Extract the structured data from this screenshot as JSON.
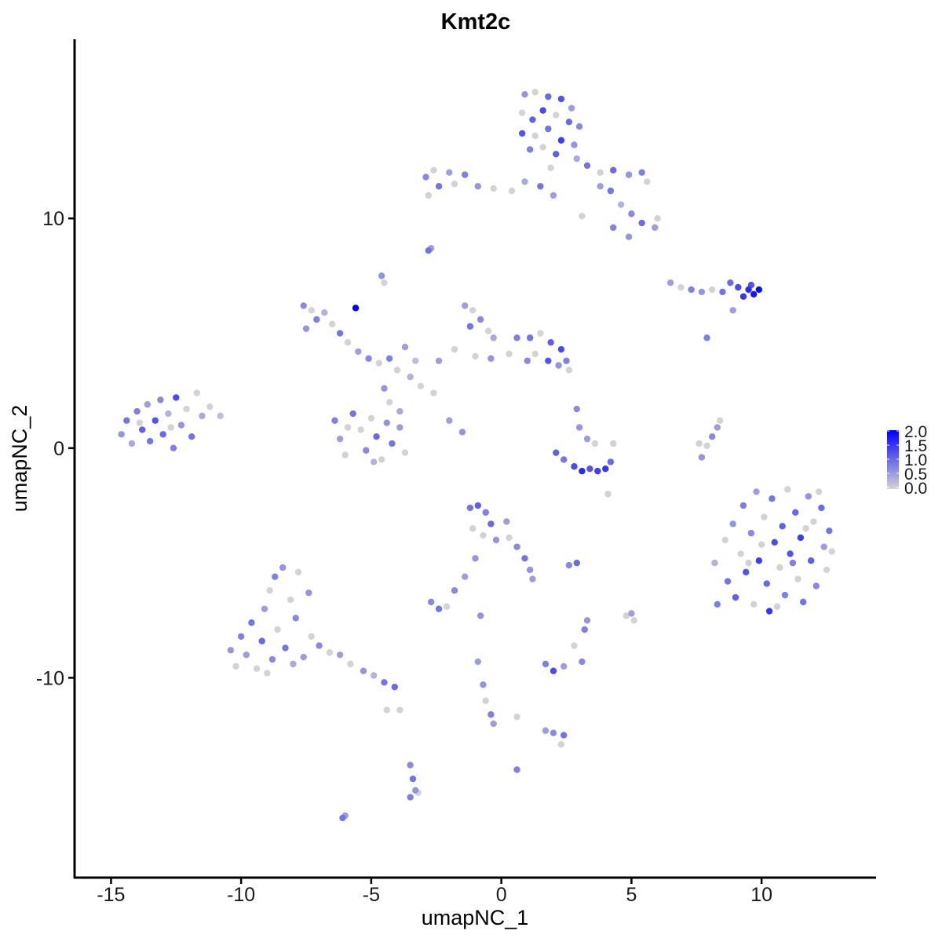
{
  "chart_data": {
    "type": "scatter",
    "title": "Kmt2c",
    "xlabel": "umapNC_1",
    "ylabel": "umapNC_2",
    "xlim": [
      -16.4,
      14.4
    ],
    "ylim": [
      -18.7,
      17.8
    ],
    "xticks": [
      -15,
      -10,
      -5,
      0,
      5,
      10
    ],
    "yticks": [
      -10,
      0,
      10
    ],
    "grid": false,
    "color_scale": {
      "low": "#d3d3d3",
      "high": "#0000ff",
      "min": 0,
      "max": 2.0,
      "ticks": [
        "0.0",
        "0.5",
        "1.0",
        "1.5",
        "2.0"
      ]
    },
    "legend_position": "right",
    "points": [
      [
        -14.6,
        0.6,
        0.6
      ],
      [
        -14.4,
        1.2,
        0.9
      ],
      [
        -14.2,
        0.2,
        0.4
      ],
      [
        -14.0,
        1.6,
        0.8
      ],
      [
        -13.8,
        0.8,
        1.1
      ],
      [
        -13.6,
        1.9,
        0.5
      ],
      [
        -13.5,
        0.3,
        0.9
      ],
      [
        -13.3,
        1.2,
        1.2
      ],
      [
        -13.1,
        2.1,
        0.7
      ],
      [
        -13.0,
        0.6,
        1.0
      ],
      [
        -12.8,
        1.5,
        0.3
      ],
      [
        -12.6,
        0.0,
        0.8
      ],
      [
        -12.5,
        2.2,
        1.3
      ],
      [
        -12.3,
        1.0,
        0.6
      ],
      [
        -12.1,
        1.7,
        0
      ],
      [
        -11.9,
        0.5,
        0.9
      ],
      [
        -11.7,
        2.4,
        0
      ],
      [
        -11.5,
        1.4,
        0.4
      ],
      [
        -11.2,
        1.8,
        0
      ],
      [
        -10.8,
        1.4,
        0.2
      ],
      [
        -13.9,
        1.1,
        0
      ],
      [
        -12.7,
        0.9,
        0
      ],
      [
        0.9,
        15.4,
        0.6
      ],
      [
        1.3,
        15.5,
        0
      ],
      [
        1.8,
        15.3,
        1.0
      ],
      [
        2.3,
        15.2,
        1.2
      ],
      [
        2.7,
        14.8,
        0.5
      ],
      [
        0.8,
        14.6,
        0
      ],
      [
        1.2,
        14.3,
        1.1
      ],
      [
        1.6,
        14.7,
        1.3
      ],
      [
        2.1,
        14.5,
        0
      ],
      [
        2.6,
        14.2,
        1.0
      ],
      [
        3.0,
        14.0,
        0.7
      ],
      [
        0.8,
        13.7,
        1.2
      ],
      [
        1.3,
        13.6,
        0
      ],
      [
        1.8,
        13.9,
        0.9
      ],
      [
        2.3,
        13.4,
        1.4
      ],
      [
        2.8,
        13.2,
        0.6
      ],
      [
        1.1,
        13.0,
        0.8
      ],
      [
        1.6,
        13.1,
        0
      ],
      [
        2.1,
        12.8,
        1.1
      ],
      [
        2.9,
        12.6,
        0.4
      ],
      [
        3.3,
        12.3,
        0.9
      ],
      [
        3.8,
        12.0,
        0
      ],
      [
        4.3,
        12.1,
        1.0
      ],
      [
        4.9,
        11.9,
        0.6
      ],
      [
        5.4,
        12.0,
        0.8
      ],
      [
        5.6,
        11.6,
        0
      ],
      [
        4.2,
        11.2,
        0.9
      ],
      [
        4.6,
        10.6,
        0.3
      ],
      [
        5.0,
        10.2,
        0.7
      ],
      [
        5.4,
        9.8,
        1.0
      ],
      [
        5.9,
        9.6,
        0.5
      ],
      [
        6.0,
        10.0,
        0
      ],
      [
        4.3,
        9.6,
        0.8
      ],
      [
        4.9,
        9.2,
        0.6
      ],
      [
        3.1,
        10.1,
        0
      ],
      [
        3.8,
        11.4,
        0.5
      ],
      [
        1.9,
        12.2,
        0
      ],
      [
        1.5,
        11.4,
        0.9
      ],
      [
        0.9,
        11.6,
        0.4
      ],
      [
        0.4,
        11.2,
        0
      ],
      [
        -0.3,
        11.3,
        0
      ],
      [
        -0.9,
        11.4,
        0.6
      ],
      [
        -1.4,
        11.9,
        0.8
      ],
      [
        -2.0,
        12.0,
        0.5
      ],
      [
        -2.6,
        12.1,
        0
      ],
      [
        -2.9,
        11.8,
        0.7
      ],
      [
        -2.4,
        11.4,
        0.9
      ],
      [
        -2.8,
        11.0,
        0
      ],
      [
        -1.8,
        11.5,
        0
      ],
      [
        2.0,
        11.0,
        0.5
      ],
      [
        -2.8,
        8.6,
        0.9
      ],
      [
        -2.7,
        8.7,
        0.5
      ],
      [
        -4.6,
        7.5,
        0.6
      ],
      [
        -4.5,
        7.2,
        0
      ],
      [
        -7.6,
        6.2,
        0.7
      ],
      [
        -7.3,
        6.0,
        0
      ],
      [
        -7.1,
        5.6,
        0.8
      ],
      [
        -6.8,
        5.9,
        0.3
      ],
      [
        -6.5,
        5.4,
        0
      ],
      [
        -7.5,
        5.2,
        0.6
      ],
      [
        -6.2,
        5.0,
        0.9
      ],
      [
        -5.9,
        4.6,
        0
      ],
      [
        -5.5,
        4.2,
        0.5
      ],
      [
        -5.6,
        6.1,
        2.0
      ],
      [
        -5.1,
        3.9,
        0.7
      ],
      [
        -4.7,
        3.7,
        0
      ],
      [
        -4.3,
        3.9,
        0.8
      ],
      [
        -4.0,
        3.4,
        0
      ],
      [
        -4.5,
        2.6,
        0.6
      ],
      [
        -4.3,
        2.0,
        0
      ],
      [
        -3.9,
        1.6,
        0.4
      ],
      [
        -3.5,
        3.1,
        0.3
      ],
      [
        -3.1,
        2.7,
        0
      ],
      [
        -2.6,
        2.4,
        0
      ],
      [
        -2.0,
        1.2,
        0.5
      ],
      [
        -1.5,
        0.7,
        0.6
      ],
      [
        -3.7,
        4.4,
        0.5
      ],
      [
        -3.3,
        3.8,
        0.2
      ],
      [
        -6.4,
        1.2,
        0.8
      ],
      [
        -6.2,
        0.4,
        0.5
      ],
      [
        -6.0,
        -0.3,
        0
      ],
      [
        -5.7,
        1.5,
        0.9
      ],
      [
        -5.4,
        0.8,
        0
      ],
      [
        -5.2,
        -0.1,
        0.7
      ],
      [
        -5.0,
        1.3,
        0
      ],
      [
        -4.8,
        0.5,
        1.0
      ],
      [
        -4.6,
        -0.5,
        0
      ],
      [
        -4.4,
        1.1,
        0.6
      ],
      [
        -4.2,
        0.2,
        0.9
      ],
      [
        -3.9,
        0.9,
        0.5
      ],
      [
        -3.7,
        -0.2,
        0
      ],
      [
        -4.9,
        -0.6,
        0.3
      ],
      [
        -5.9,
        0.9,
        0
      ],
      [
        -1.4,
        6.2,
        0.5
      ],
      [
        -1.1,
        6.0,
        0
      ],
      [
        -0.8,
        5.6,
        0.7
      ],
      [
        -0.5,
        5.1,
        0
      ],
      [
        -1.2,
        5.3,
        0.9
      ],
      [
        -0.3,
        4.8,
        0.4
      ],
      [
        -1.8,
        4.3,
        0
      ],
      [
        -2.4,
        3.8,
        0.5
      ],
      [
        -1.0,
        4.0,
        0
      ],
      [
        -0.4,
        3.9,
        0.6
      ],
      [
        0.3,
        4.1,
        0
      ],
      [
        0.6,
        4.8,
        0.8
      ],
      [
        1.1,
        4.8,
        0.9
      ],
      [
        1.5,
        5.0,
        0
      ],
      [
        1.9,
        4.6,
        1.1
      ],
      [
        2.3,
        4.3,
        1.3
      ],
      [
        2.5,
        3.8,
        0.8
      ],
      [
        1.3,
        4.1,
        0
      ],
      [
        1.8,
        3.8,
        1.2
      ],
      [
        2.2,
        3.6,
        0.6
      ],
      [
        2.6,
        3.4,
        0
      ],
      [
        1.0,
        3.8,
        0.7
      ],
      [
        6.5,
        7.2,
        0.5
      ],
      [
        6.9,
        7.0,
        0
      ],
      [
        7.3,
        6.9,
        0.8
      ],
      [
        7.7,
        6.8,
        0.6
      ],
      [
        8.1,
        6.9,
        0
      ],
      [
        8.5,
        6.8,
        0.9
      ],
      [
        8.8,
        7.2,
        1.0
      ],
      [
        9.1,
        7.0,
        1.3
      ],
      [
        9.3,
        6.6,
        1.5
      ],
      [
        9.5,
        6.9,
        1.6
      ],
      [
        9.7,
        6.7,
        1.8
      ],
      [
        9.9,
        6.9,
        1.9
      ],
      [
        9.6,
        7.1,
        1.2
      ],
      [
        8.9,
        6.0,
        0.5
      ],
      [
        7.9,
        4.8,
        0.8
      ],
      [
        2.1,
        -0.2,
        1.1
      ],
      [
        2.4,
        -0.5,
        0.9
      ],
      [
        2.8,
        -0.8,
        1.3
      ],
      [
        3.1,
        -1.0,
        1.6
      ],
      [
        3.4,
        -0.9,
        1.2
      ],
      [
        3.7,
        -1.0,
        1.4
      ],
      [
        4.0,
        -0.9,
        1.5
      ],
      [
        4.2,
        -0.6,
        1.0
      ],
      [
        3.0,
        0.9,
        0.6
      ],
      [
        3.3,
        0.4,
        0.5
      ],
      [
        3.6,
        0.2,
        0
      ],
      [
        2.9,
        1.7,
        0.7
      ],
      [
        4.3,
        0.2,
        0
      ],
      [
        4.1,
        -2.0,
        0
      ],
      [
        7.7,
        -0.4,
        0.6
      ],
      [
        7.9,
        0.1,
        0
      ],
      [
        8.1,
        0.5,
        0.7
      ],
      [
        8.3,
        0.9,
        0.5
      ],
      [
        8.4,
        1.2,
        0
      ],
      [
        7.6,
        0.2,
        0
      ],
      [
        8.2,
        -5.0,
        0.3
      ],
      [
        8.3,
        -6.8,
        0.8
      ],
      [
        8.6,
        -4.0,
        0
      ],
      [
        8.7,
        -5.8,
        0.9
      ],
      [
        8.9,
        -3.3,
        0.6
      ],
      [
        9.0,
        -6.5,
        1.1
      ],
      [
        9.2,
        -4.6,
        0
      ],
      [
        9.3,
        -2.5,
        0.8
      ],
      [
        9.4,
        -5.4,
        1.2
      ],
      [
        9.6,
        -3.7,
        0.7
      ],
      [
        9.7,
        -6.8,
        0
      ],
      [
        9.8,
        -1.9,
        0.5
      ],
      [
        9.9,
        -4.9,
        1.4
      ],
      [
        10.1,
        -3.0,
        0
      ],
      [
        10.2,
        -5.9,
        1.0
      ],
      [
        10.3,
        -7.1,
        1.5
      ],
      [
        10.4,
        -2.2,
        0.9
      ],
      [
        10.5,
        -4.1,
        1.3
      ],
      [
        10.7,
        -5.2,
        0
      ],
      [
        10.8,
        -3.4,
        1.1
      ],
      [
        10.9,
        -6.4,
        0.8
      ],
      [
        11.0,
        -1.8,
        0
      ],
      [
        11.1,
        -4.6,
        1.2
      ],
      [
        11.3,
        -2.8,
        1.0
      ],
      [
        11.4,
        -5.7,
        0
      ],
      [
        11.5,
        -3.9,
        1.4
      ],
      [
        11.6,
        -6.7,
        0.9
      ],
      [
        11.8,
        -2.1,
        0.6
      ],
      [
        11.9,
        -4.9,
        1.1
      ],
      [
        12.0,
        -3.2,
        0
      ],
      [
        12.1,
        -6.0,
        0.7
      ],
      [
        12.3,
        -2.6,
        1.0
      ],
      [
        12.4,
        -4.3,
        0.5
      ],
      [
        12.5,
        -5.3,
        0
      ],
      [
        12.6,
        -3.6,
        0.9
      ],
      [
        12.7,
        -4.5,
        0
      ],
      [
        12.2,
        -1.9,
        0
      ],
      [
        10.6,
        -6.9,
        0
      ],
      [
        9.5,
        -5.0,
        0
      ],
      [
        11.2,
        -5.0,
        0.8
      ],
      [
        10.0,
        -4.2,
        0
      ],
      [
        11.7,
        -3.5,
        0
      ],
      [
        -1.2,
        -2.6,
        0.9
      ],
      [
        -0.9,
        -2.5,
        1.1
      ],
      [
        -0.6,
        -2.8,
        0.8
      ],
      [
        -0.4,
        -3.3,
        1.0
      ],
      [
        -1.1,
        -3.5,
        0
      ],
      [
        -0.7,
        -3.8,
        0
      ],
      [
        -0.2,
        -4.0,
        0.6
      ],
      [
        0.2,
        -3.2,
        0.5
      ],
      [
        0.3,
        -3.9,
        0
      ],
      [
        0.6,
        -4.3,
        0.7
      ],
      [
        0.9,
        -4.8,
        0.9
      ],
      [
        1.1,
        -5.3,
        0.6
      ],
      [
        1.2,
        -5.7,
        0.5
      ],
      [
        -1.0,
        -4.8,
        0.6
      ],
      [
        -1.4,
        -5.6,
        0.5
      ],
      [
        -1.8,
        -6.2,
        0.7
      ],
      [
        -10.4,
        -8.8,
        0.6
      ],
      [
        -10.2,
        -9.5,
        0
      ],
      [
        -10.0,
        -8.2,
        0.8
      ],
      [
        -9.8,
        -9.0,
        0.5
      ],
      [
        -9.6,
        -7.6,
        0.9
      ],
      [
        -9.4,
        -9.6,
        0
      ],
      [
        -9.2,
        -8.4,
        1.0
      ],
      [
        -9.1,
        -7.0,
        0.5
      ],
      [
        -8.9,
        -6.2,
        0
      ],
      [
        -8.8,
        -9.2,
        0.7
      ],
      [
        -8.7,
        -5.6,
        0.8
      ],
      [
        -8.6,
        -7.9,
        0
      ],
      [
        -8.4,
        -5.2,
        0.6
      ],
      [
        -8.3,
        -8.7,
        0.9
      ],
      [
        -8.1,
        -6.6,
        0
      ],
      [
        -7.9,
        -7.4,
        0.7
      ],
      [
        -7.8,
        -5.4,
        0
      ],
      [
        -7.6,
        -9.1,
        0.5
      ],
      [
        -7.4,
        -6.3,
        0.6
      ],
      [
        -7.3,
        -8.2,
        0
      ],
      [
        -7.0,
        -8.6,
        0.7
      ],
      [
        -6.6,
        -8.9,
        0
      ],
      [
        -6.2,
        -9.0,
        0.5
      ],
      [
        -5.8,
        -9.4,
        0
      ],
      [
        -5.3,
        -9.7,
        0.6
      ],
      [
        -4.9,
        -9.9,
        0.3
      ],
      [
        -4.5,
        -10.2,
        0.9
      ],
      [
        -4.1,
        -10.4,
        1.0
      ],
      [
        -9.0,
        -9.8,
        0
      ],
      [
        -8.0,
        -9.4,
        0.4
      ],
      [
        -2.7,
        -6.7,
        0.7
      ],
      [
        -2.4,
        -7.0,
        0.9
      ],
      [
        -2.1,
        -6.9,
        0
      ],
      [
        -0.8,
        -7.3,
        0.6
      ],
      [
        1.7,
        -9.4,
        0.8
      ],
      [
        2.0,
        -9.7,
        1.3
      ],
      [
        2.4,
        -9.5,
        0.5
      ],
      [
        3.1,
        -9.3,
        0.7
      ],
      [
        2.8,
        -8.6,
        0
      ],
      [
        2.6,
        -5.1,
        0.7
      ],
      [
        2.9,
        -5.0,
        1.0
      ],
      [
        3.3,
        -7.5,
        0.6
      ],
      [
        3.2,
        -7.9,
        0.8
      ],
      [
        5.0,
        -7.2,
        0.5
      ],
      [
        5.1,
        -7.5,
        0
      ],
      [
        4.8,
        -7.3,
        0
      ],
      [
        -0.9,
        -9.3,
        0.5
      ],
      [
        -0.7,
        -10.3,
        0.6
      ],
      [
        -0.6,
        -11.0,
        0
      ],
      [
        -0.4,
        -11.6,
        0.8
      ],
      [
        -0.3,
        -12.0,
        0.5
      ],
      [
        0.6,
        -11.7,
        0
      ],
      [
        1.7,
        -12.3,
        0.5
      ],
      [
        2.0,
        -12.4,
        0.7
      ],
      [
        2.4,
        -12.5,
        0.9
      ],
      [
        2.3,
        -12.9,
        0
      ],
      [
        -4.4,
        -11.4,
        0
      ],
      [
        -3.9,
        -11.4,
        0
      ],
      [
        -3.5,
        -13.8,
        0.7
      ],
      [
        -3.4,
        -14.4,
        0.9
      ],
      [
        -3.3,
        -14.9,
        0.6
      ],
      [
        -3.5,
        -15.2,
        0.8
      ],
      [
        -3.2,
        -15.0,
        0
      ],
      [
        -6.1,
        -16.1,
        0.9
      ],
      [
        -6.0,
        -16.0,
        0.5
      ],
      [
        0.6,
        -14.0,
        0.8
      ]
    ]
  }
}
